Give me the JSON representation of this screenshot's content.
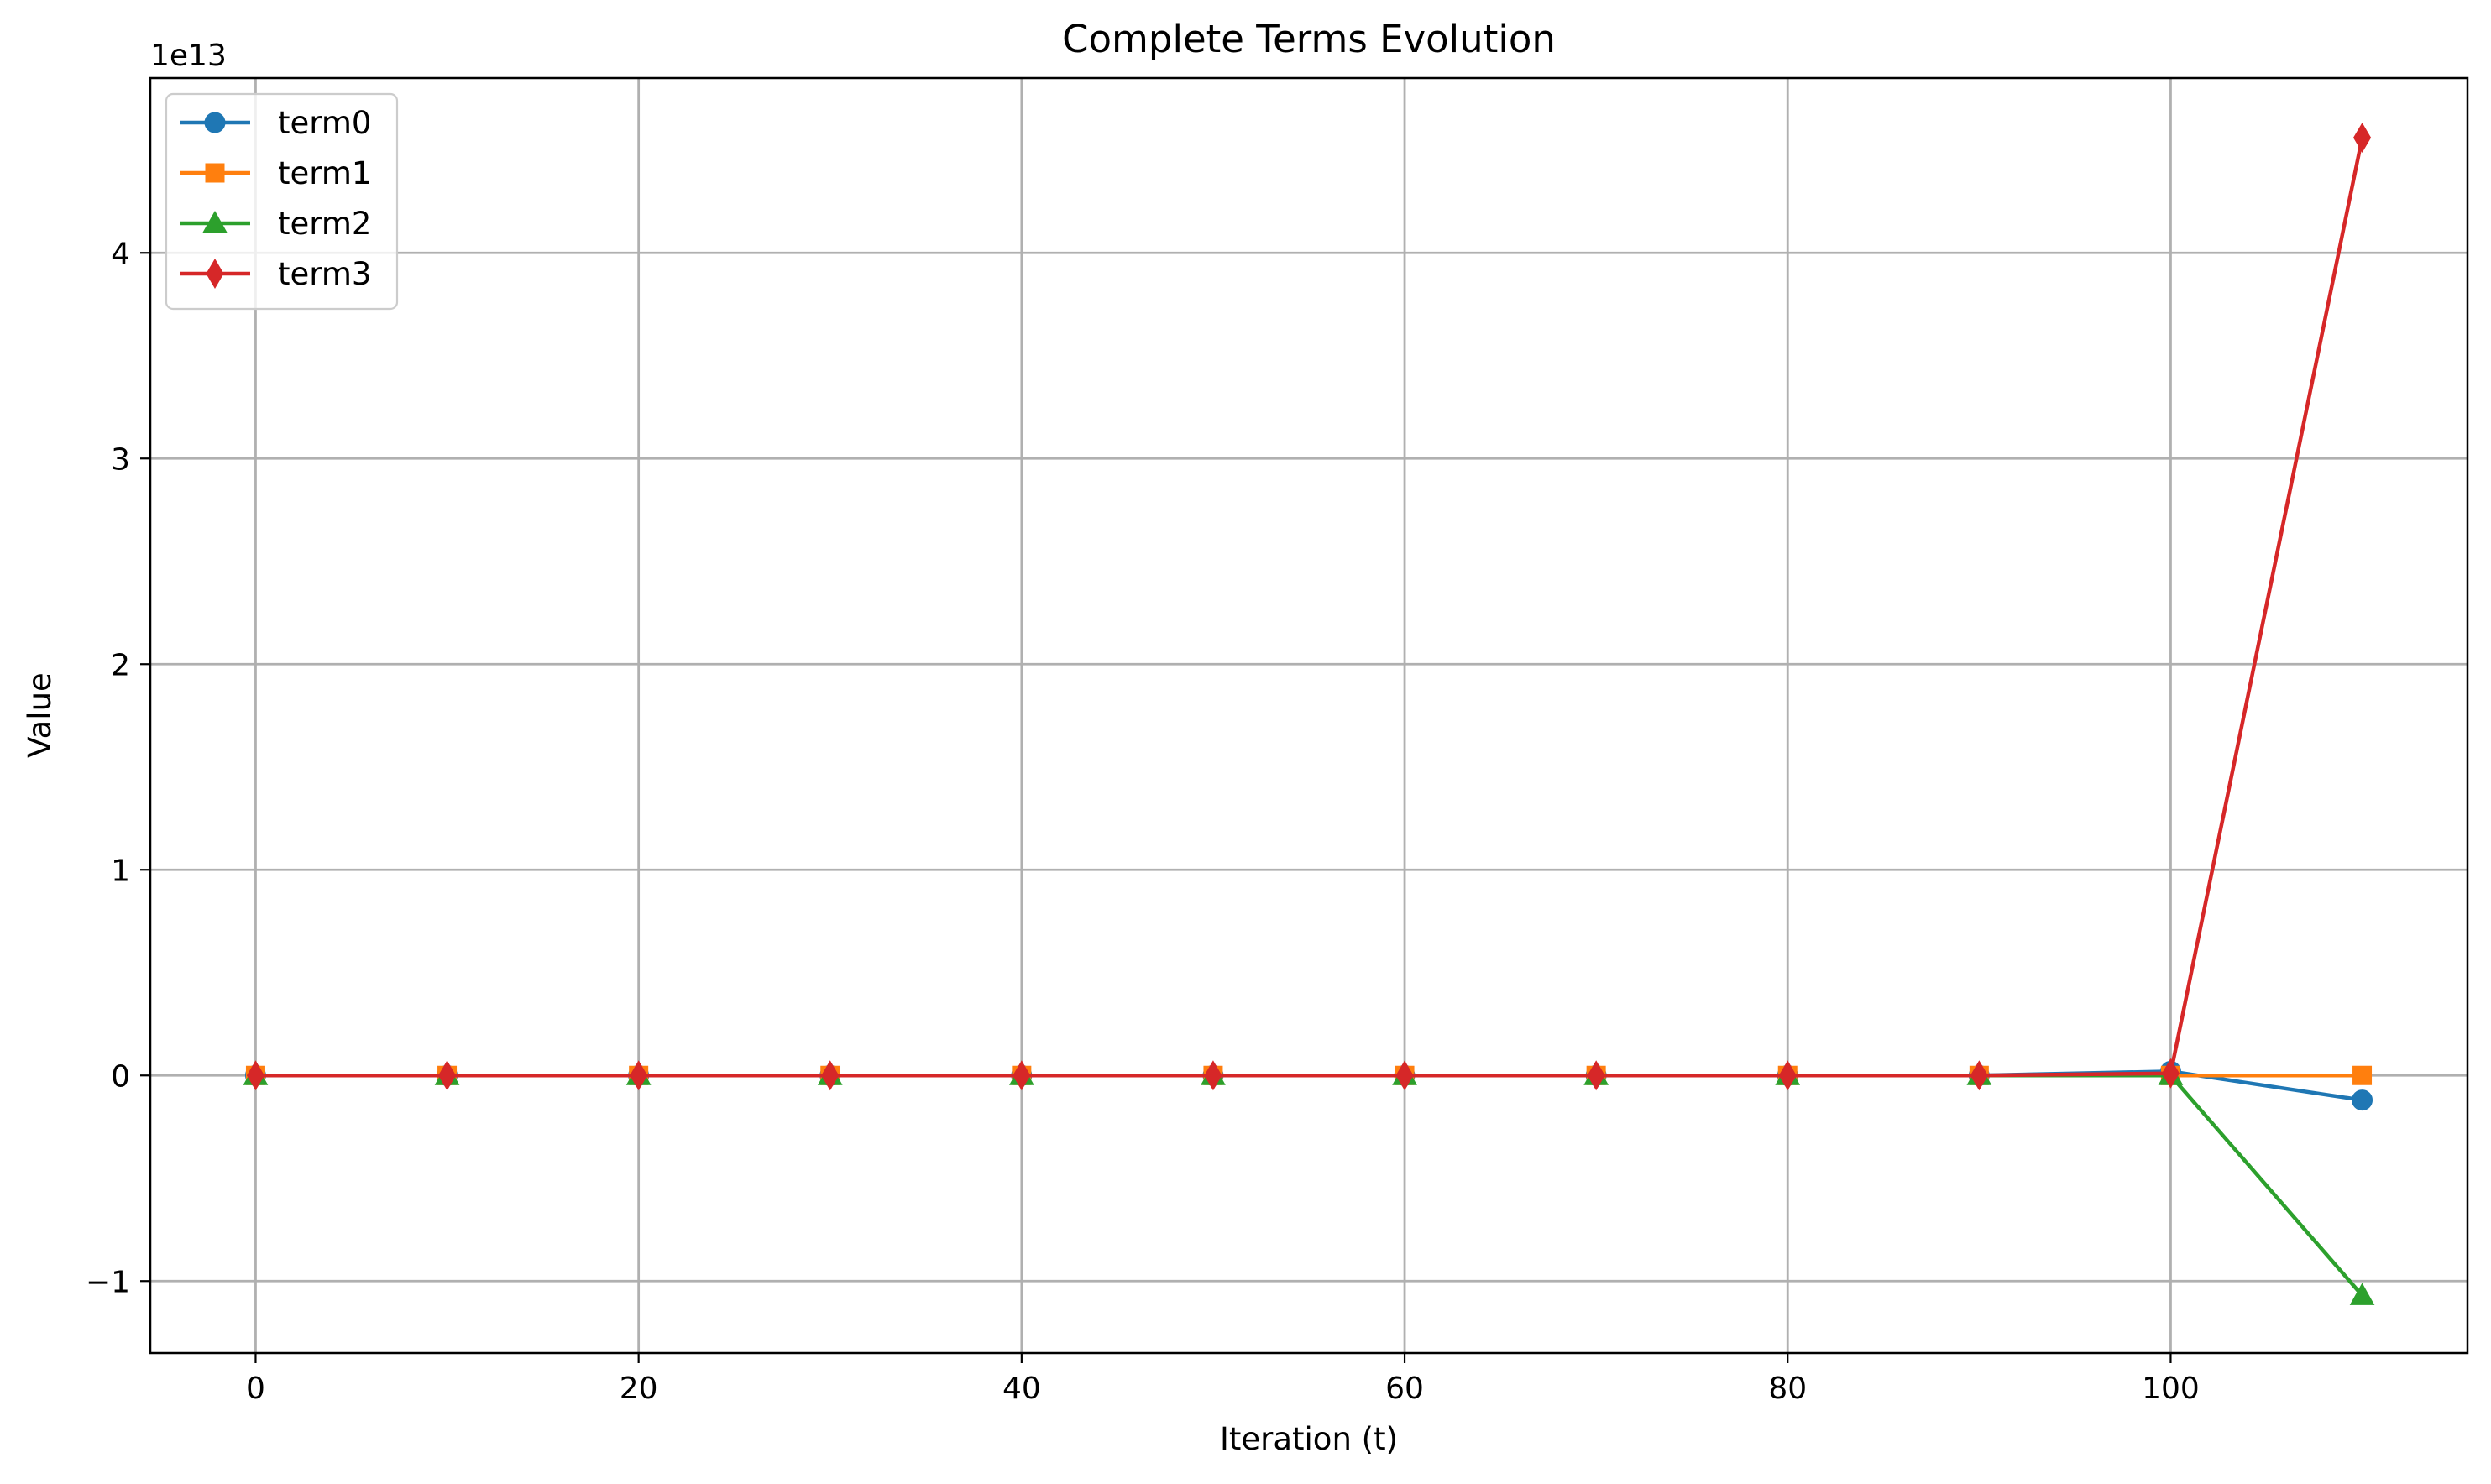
{
  "chart_data": {
    "type": "line",
    "title": "Complete Terms Evolution",
    "xlabel": "Iteration (t)",
    "ylabel": "Value",
    "y_offset_label": "1e13",
    "y_unit_scale": 10000000000000,
    "xlim": [
      -5.5,
      115.5
    ],
    "ylim": [
      -13500000000000.0,
      48500000000000.0
    ],
    "x_ticks": [
      0,
      20,
      40,
      60,
      80,
      100
    ],
    "x_tick_labels": [
      "0",
      "20",
      "40",
      "60",
      "80",
      "100"
    ],
    "y_ticks": [
      -1,
      0,
      1,
      2,
      3,
      4
    ],
    "y_tick_labels": [
      "−1",
      "0",
      "1",
      "2",
      "3",
      "4"
    ],
    "grid": true,
    "legend_position": "upper-left",
    "x": [
      0,
      10,
      20,
      30,
      40,
      50,
      60,
      70,
      80,
      90,
      100,
      110
    ],
    "series": [
      {
        "name": "term0",
        "color": "#1f77b4",
        "marker": "circle",
        "values": [
          0,
          0,
          0,
          0,
          0,
          0,
          0,
          0,
          0,
          0,
          200000000000.0,
          -1200000000000.0
        ]
      },
      {
        "name": "term1",
        "color": "#ff7f0e",
        "marker": "square",
        "values": [
          0,
          0,
          0,
          0,
          0,
          0,
          0,
          0,
          0,
          0,
          0,
          0
        ]
      },
      {
        "name": "term2",
        "color": "#2ca02c",
        "marker": "triangle-up",
        "values": [
          0,
          0,
          0,
          0,
          0,
          0,
          0,
          0,
          0,
          0,
          0,
          -10700000000000.0
        ]
      },
      {
        "name": "term3",
        "color": "#d62728",
        "marker": "diamond",
        "values": [
          0,
          0,
          0,
          0,
          0,
          0,
          0,
          0,
          0,
          0,
          100000000000.0,
          45600000000000.0
        ]
      }
    ]
  }
}
